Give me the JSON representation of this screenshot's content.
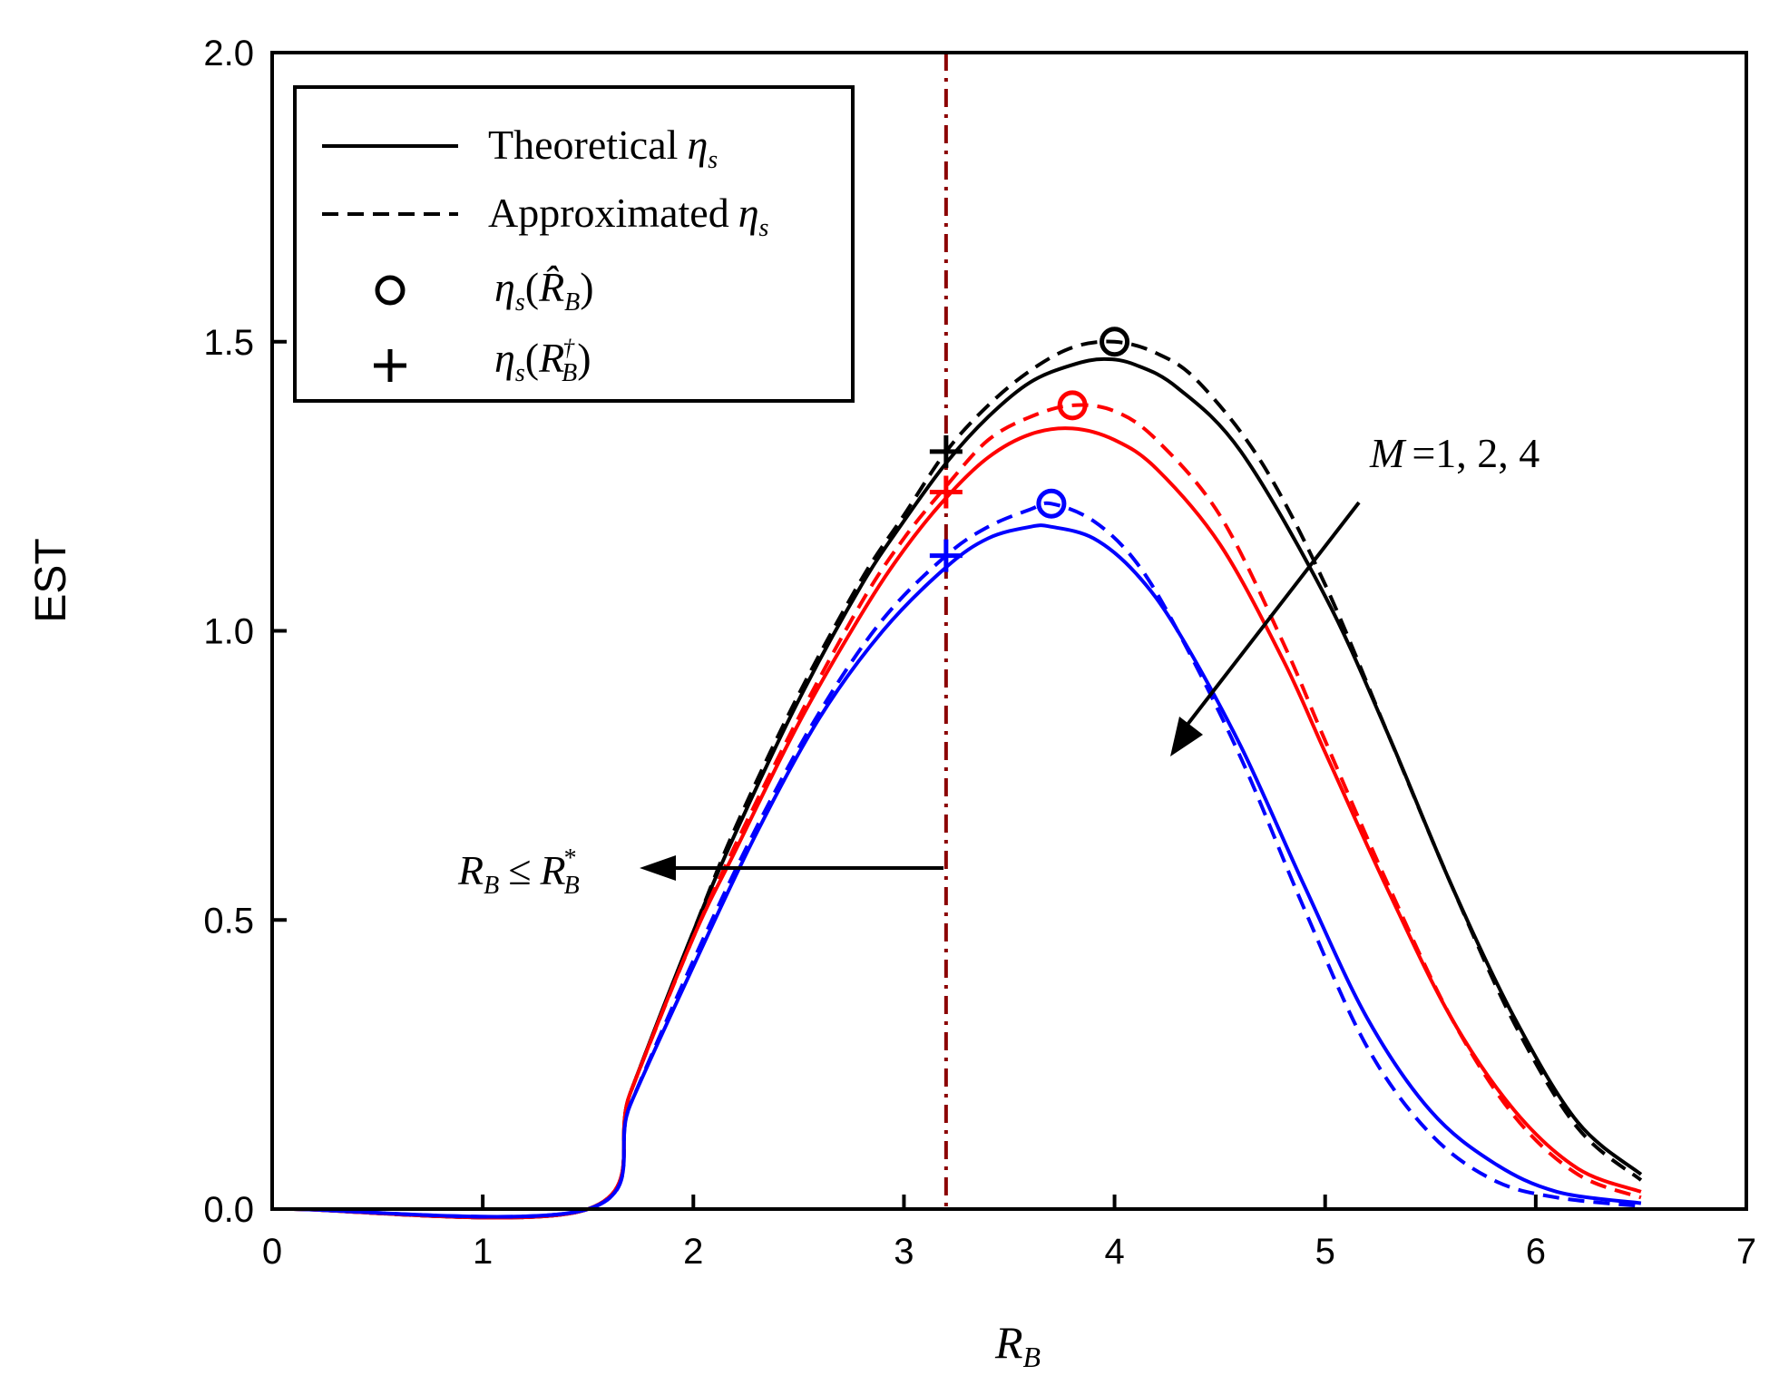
{
  "chart_data": {
    "type": "line",
    "title": "",
    "xlabel": "R",
    "xlabel_sub": "B",
    "ylabel": "EST",
    "xlim": [
      0,
      7
    ],
    "ylim": [
      0,
      2
    ],
    "xticks": [
      0,
      1,
      2,
      3,
      4,
      5,
      6,
      7
    ],
    "yticks": [
      0.0,
      0.5,
      1.0,
      1.5,
      2.0
    ],
    "xtick_labels": [
      "0",
      "1",
      "2",
      "3",
      "4",
      "5",
      "6",
      "7"
    ],
    "ytick_labels": [
      "0.0",
      "0.5",
      "1.0",
      "1.5",
      "2.0"
    ],
    "grid": false,
    "legend_position": "top-left",
    "legend": {
      "theoretical": "Theoretical",
      "approximated": "Approximated",
      "eta": "η",
      "eta_sub": "s",
      "circle_arg": "R̂",
      "circle_arg_sub": "B",
      "plus_arg": "R",
      "plus_arg_sub": "B",
      "plus_arg_sup": "†",
      "open_paren": "(",
      "close_paren": ")"
    },
    "annotations": {
      "m_label": "M",
      "m_values": "=1, 2, 4",
      "rb_lhs": "R",
      "rb_lhs_sub": "B",
      "rb_leq": "≤",
      "rb_rhs": "R",
      "rb_rhs_sub": "B",
      "rb_rhs_sup": "*"
    },
    "vertical_line_x": 3.2,
    "colors": {
      "M1": "#000000",
      "M2": "#ff0000",
      "M4": "#0000ff",
      "vline": "#8b0000"
    },
    "series": [
      {
        "name": "M=1",
        "color": "#000000",
        "theoretical": {
          "x": [
            0.1,
            1.5,
            1.7,
            2.0,
            2.2,
            2.5,
            2.8,
            3.0,
            3.2,
            3.4,
            3.6,
            3.8,
            3.95,
            4.1,
            4.3,
            4.6,
            5.0,
            5.3,
            5.6,
            5.9,
            6.2,
            6.5
          ],
          "y": [
            0,
            0,
            0.2,
            0.48,
            0.65,
            0.88,
            1.08,
            1.19,
            1.29,
            1.37,
            1.43,
            1.46,
            1.47,
            1.46,
            1.42,
            1.31,
            1.06,
            0.82,
            0.56,
            0.33,
            0.15,
            0.06
          ]
        },
        "approximated": {
          "x": [
            0.1,
            1.5,
            1.7,
            2.0,
            2.2,
            2.5,
            2.8,
            3.0,
            3.2,
            3.4,
            3.6,
            3.8,
            4.0,
            4.2,
            4.4,
            4.7,
            5.0,
            5.3,
            5.6,
            5.9,
            6.2,
            6.5
          ],
          "y": [
            0,
            0,
            0.2,
            0.48,
            0.66,
            0.89,
            1.09,
            1.2,
            1.31,
            1.39,
            1.45,
            1.49,
            1.5,
            1.48,
            1.43,
            1.29,
            1.08,
            0.82,
            0.56,
            0.32,
            0.14,
            0.05
          ]
        },
        "circle": {
          "x": 4.0,
          "y": 1.5
        },
        "plus": {
          "x": 3.2,
          "y": 1.31
        }
      },
      {
        "name": "M=2",
        "color": "#ff0000",
        "theoretical": {
          "x": [
            0.1,
            1.5,
            1.7,
            2.0,
            2.2,
            2.5,
            2.8,
            3.0,
            3.2,
            3.4,
            3.6,
            3.8,
            4.0,
            4.2,
            4.5,
            4.8,
            5.0,
            5.3,
            5.6,
            5.9,
            6.2,
            6.5
          ],
          "y": [
            0,
            0,
            0.2,
            0.47,
            0.62,
            0.84,
            1.03,
            1.14,
            1.23,
            1.3,
            1.34,
            1.35,
            1.33,
            1.28,
            1.15,
            0.95,
            0.79,
            0.55,
            0.33,
            0.17,
            0.07,
            0.03
          ]
        },
        "approximated": {
          "x": [
            0.1,
            1.5,
            1.7,
            2.0,
            2.2,
            2.5,
            2.8,
            3.0,
            3.2,
            3.4,
            3.6,
            3.8,
            4.0,
            4.2,
            4.5,
            4.8,
            5.0,
            5.3,
            5.6,
            5.9,
            6.2,
            6.5
          ],
          "y": [
            0,
            0,
            0.2,
            0.47,
            0.63,
            0.85,
            1.05,
            1.16,
            1.25,
            1.33,
            1.37,
            1.39,
            1.38,
            1.33,
            1.2,
            0.98,
            0.81,
            0.56,
            0.33,
            0.16,
            0.06,
            0.02
          ]
        },
        "circle": {
          "x": 3.8,
          "y": 1.39
        },
        "plus": {
          "x": 3.2,
          "y": 1.24
        }
      },
      {
        "name": "M=4",
        "color": "#0000ff",
        "theoretical": {
          "x": [
            0.1,
            1.5,
            1.7,
            2.0,
            2.3,
            2.6,
            2.9,
            3.2,
            3.4,
            3.6,
            3.7,
            3.9,
            4.1,
            4.3,
            4.6,
            4.9,
            5.2,
            5.5,
            5.8,
            6.1,
            6.5
          ],
          "y": [
            0,
            0,
            0.18,
            0.42,
            0.65,
            0.85,
            1.0,
            1.11,
            1.16,
            1.18,
            1.18,
            1.16,
            1.1,
            1.0,
            0.8,
            0.56,
            0.33,
            0.17,
            0.08,
            0.03,
            0.01
          ]
        },
        "approximated": {
          "x": [
            0.1,
            1.5,
            1.7,
            2.0,
            2.3,
            2.6,
            2.9,
            3.2,
            3.4,
            3.6,
            3.7,
            3.9,
            4.1,
            4.3,
            4.6,
            4.9,
            5.2,
            5.5,
            5.8,
            6.1,
            6.5
          ],
          "y": [
            0,
            0,
            0.18,
            0.43,
            0.66,
            0.86,
            1.02,
            1.13,
            1.18,
            1.21,
            1.22,
            1.19,
            1.12,
            1.0,
            0.78,
            0.52,
            0.28,
            0.13,
            0.05,
            0.02,
            0.005
          ]
        },
        "circle": {
          "x": 3.7,
          "y": 1.22
        },
        "plus": {
          "x": 3.2,
          "y": 1.13
        }
      }
    ]
  }
}
